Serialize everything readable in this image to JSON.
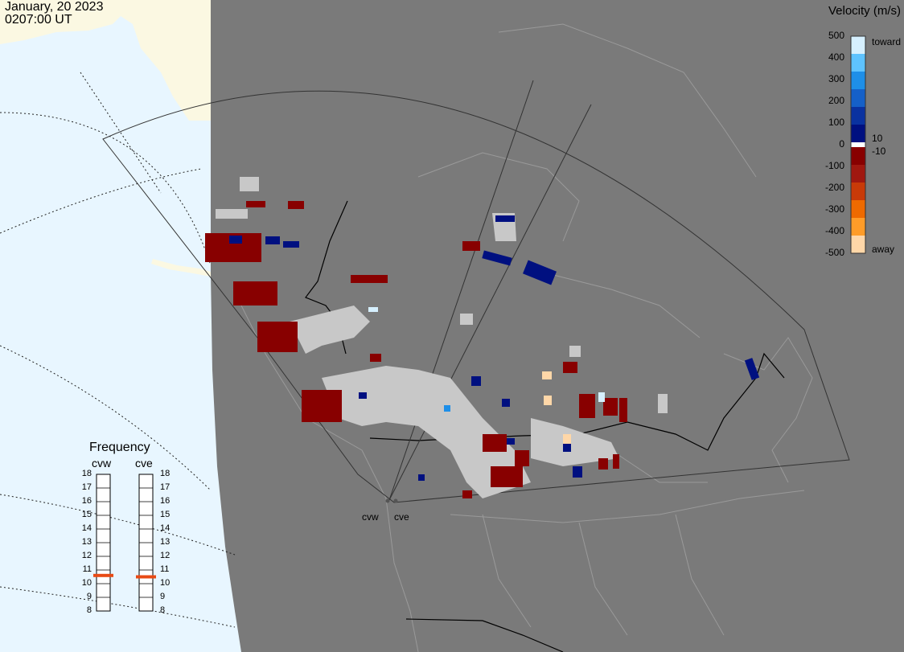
{
  "header": {
    "date": "January, 20 2023",
    "time": "0207:00 UT"
  },
  "colorbar": {
    "title": "Velocity (m/s)",
    "ticks": [
      "500",
      "400",
      "300",
      "200",
      "100",
      "0",
      "-100",
      "-200",
      "-300",
      "-400",
      "-500"
    ],
    "toward_label": "toward",
    "away_label": "away",
    "pos_min_label": "10",
    "neg_min_label": "-10",
    "colors": [
      "#d6f0ff",
      "#5ec3ff",
      "#1e8fe8",
      "#1560c8",
      "#0a32a0",
      "#001080",
      "#880000",
      "#a01810",
      "#c83a08",
      "#ee6a00",
      "#ff9c28",
      "#ffd7a8"
    ]
  },
  "frequency": {
    "title": "Frequency",
    "columns": [
      {
        "name": "cvw",
        "value": 10.6
      },
      {
        "name": "cve",
        "value": 10.5
      }
    ],
    "ticks": [
      "18",
      "17",
      "16",
      "15",
      "14",
      "13",
      "12",
      "11",
      "10",
      "9",
      "8"
    ],
    "marker_color": "#e84a14"
  },
  "radars": [
    {
      "name": "cvw"
    },
    {
      "name": "cve"
    }
  ],
  "colors": {
    "ocean": "#e8f6ff",
    "land_day": "#fbf8e2",
    "night": "#7a7a7a",
    "ground_scatter": "#c8c8c8"
  }
}
